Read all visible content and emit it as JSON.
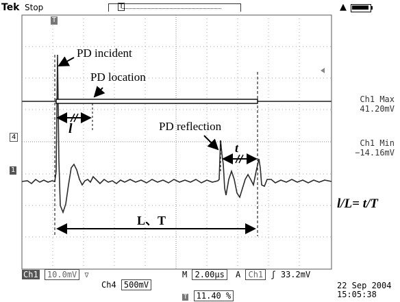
{
  "header": {
    "brand": "Tek",
    "run_state": "Stop",
    "trigger_marker": "T"
  },
  "side_panel": {
    "max_label": "Ch1 Max",
    "max_value": "41.20mV",
    "min_label": "Ch1 Min",
    "min_value": "−14.16mV"
  },
  "markers": {
    "ch4_marker": "4",
    "ch1_marker": "1",
    "trigger_top": "T"
  },
  "annotations": {
    "pd_incident": "PD incident",
    "pd_location": "PD location",
    "pd_reflection": "PD reflection",
    "l_symbol": "l",
    "t_symbol": "t",
    "LT_label": "L、T",
    "formula": "l/L= t/T"
  },
  "bottom": {
    "ch1_label": "Ch1",
    "ch1_scale": "10.0mV",
    "ch1_bw": "∇",
    "ch4_label": "Ch4",
    "ch4_scale": "500mV",
    "time_prefix": "M",
    "time_scale": "2.00µs",
    "acq": "A",
    "trig_src": "Ch1",
    "trig_slope": "ʃ",
    "trig_level": "33.2mV",
    "trig_pos_icon": "T",
    "trig_pos": "11.40 %",
    "date": "22 Sep  2004",
    "time": "15:05:38"
  },
  "colors": {
    "trace": "#2b2b2b",
    "grid": "#9a9a9a",
    "background": "#ffffff"
  }
}
